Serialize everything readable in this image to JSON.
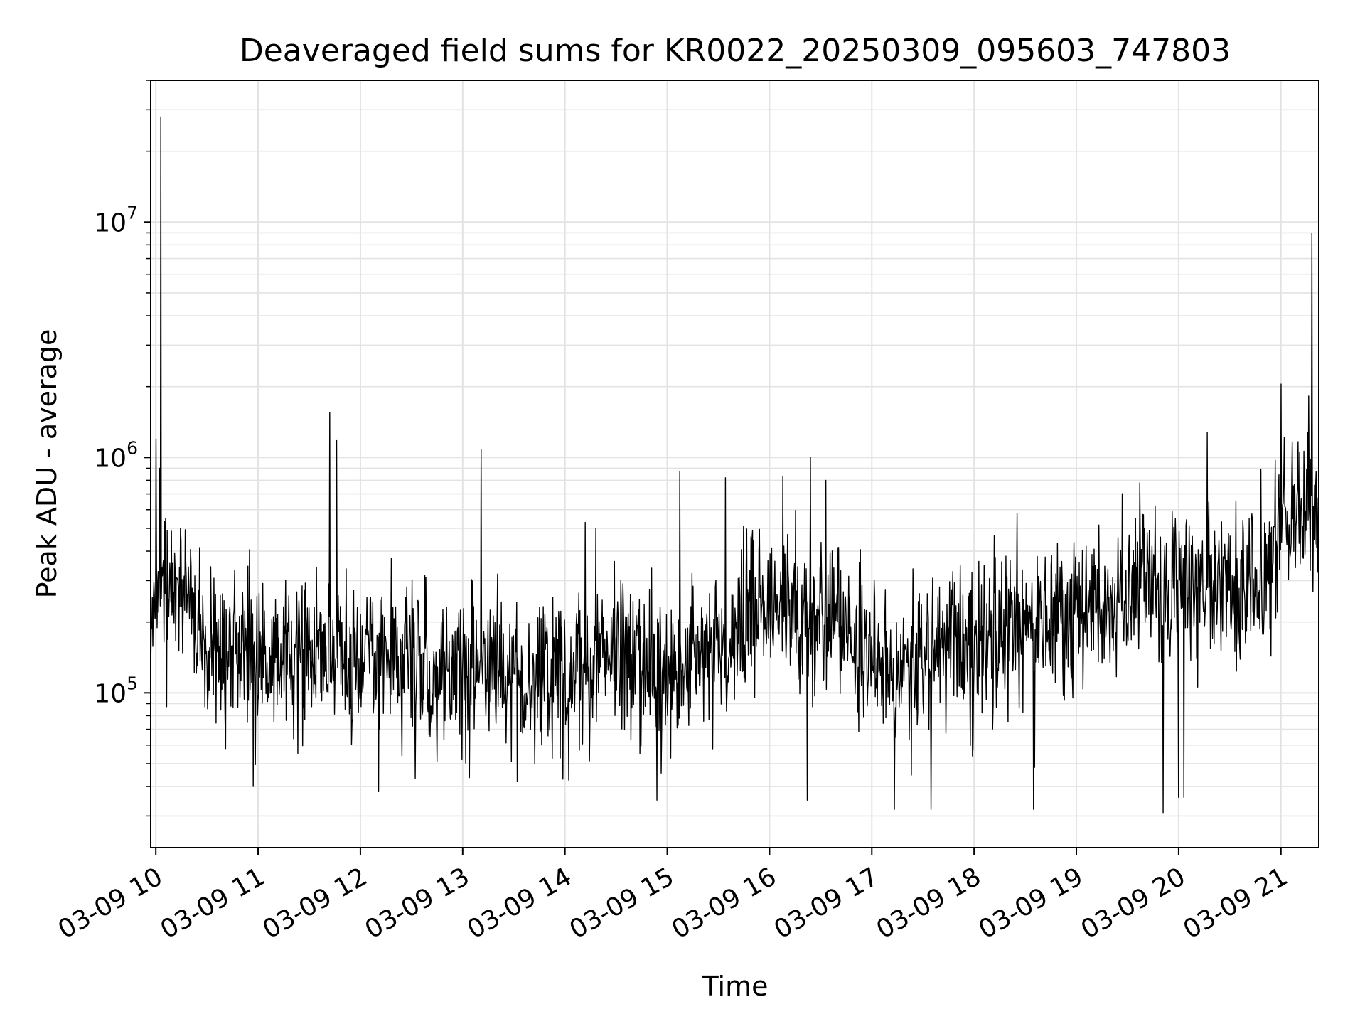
{
  "chart_data": {
    "type": "line",
    "title": "Deaveraged field sums for KR0022_20250309_095603_747803",
    "xlabel": "Time",
    "ylabel": "Peak ADU - average",
    "yscale": "log",
    "ylim": [
      22000,
      40000000
    ],
    "xlim": [
      9.95,
      21.37
    ],
    "grid": true,
    "x_ticks": [
      {
        "value": 10,
        "label": "03-09 10"
      },
      {
        "value": 11,
        "label": "03-09 11"
      },
      {
        "value": 12,
        "label": "03-09 12"
      },
      {
        "value": 13,
        "label": "03-09 13"
      },
      {
        "value": 14,
        "label": "03-09 14"
      },
      {
        "value": 15,
        "label": "03-09 15"
      },
      {
        "value": 16,
        "label": "03-09 16"
      },
      {
        "value": 17,
        "label": "03-09 17"
      },
      {
        "value": 18,
        "label": "03-09 18"
      },
      {
        "value": 19,
        "label": "03-09 19"
      },
      {
        "value": 20,
        "label": "03-09 20"
      },
      {
        "value": 21,
        "label": "03-09 21"
      }
    ],
    "y_ticks": [
      {
        "value": 100000,
        "base": "10",
        "exp": "5"
      },
      {
        "value": 1000000,
        "base": "10",
        "exp": "6"
      },
      {
        "value": 10000000,
        "base": "10",
        "exp": "7"
      }
    ],
    "series": [
      {
        "name": "field sums",
        "color": "#000000",
        "baseline": [
          [
            9.95,
            220000
          ],
          [
            10.3,
            300000
          ],
          [
            10.45,
            180000
          ],
          [
            10.6,
            140000
          ],
          [
            11.0,
            140000
          ],
          [
            11.5,
            145000
          ],
          [
            12.0,
            145000
          ],
          [
            12.5,
            140000
          ],
          [
            13.0,
            130000
          ],
          [
            13.5,
            120000
          ],
          [
            14.0,
            115000
          ],
          [
            14.3,
            150000
          ],
          [
            14.6,
            140000
          ],
          [
            15.0,
            115000
          ],
          [
            15.4,
            150000
          ],
          [
            15.8,
            210000
          ],
          [
            16.2,
            230000
          ],
          [
            16.6,
            220000
          ],
          [
            17.0,
            130000
          ],
          [
            17.5,
            140000
          ],
          [
            18.0,
            160000
          ],
          [
            18.5,
            190000
          ],
          [
            19.0,
            220000
          ],
          [
            19.5,
            260000
          ],
          [
            20.0,
            270000
          ],
          [
            20.5,
            280000
          ],
          [
            20.85,
            290000
          ],
          [
            21.0,
            550000
          ],
          [
            21.37,
            560000
          ]
        ],
        "noise_decades": 0.28,
        "samples": 2200,
        "spikes": [
          [
            10.05,
            28000000
          ],
          [
            10.0,
            1200000
          ],
          [
            10.04,
            900000
          ],
          [
            11.7,
            1550000
          ],
          [
            11.77,
            1180000
          ],
          [
            13.18,
            1080000
          ],
          [
            14.2,
            530000
          ],
          [
            14.3,
            500000
          ],
          [
            15.12,
            870000
          ],
          [
            15.57,
            820000
          ],
          [
            16.13,
            830000
          ],
          [
            16.4,
            1000000
          ],
          [
            16.55,
            800000
          ],
          [
            18.42,
            580000
          ],
          [
            18.62,
            380000
          ],
          [
            19.62,
            780000
          ],
          [
            20.28,
            1280000
          ],
          [
            20.72,
            540000
          ],
          [
            21.0,
            2050000
          ],
          [
            21.3,
            9000000
          ],
          [
            10.95,
            40000
          ],
          [
            12.18,
            38000
          ],
          [
            14.9,
            35000
          ],
          [
            16.37,
            35000
          ],
          [
            17.22,
            32000
          ],
          [
            17.58,
            32000
          ],
          [
            18.58,
            32000
          ],
          [
            19.85,
            31000
          ],
          [
            20.0,
            36000
          ],
          [
            20.05,
            36000
          ]
        ]
      }
    ]
  }
}
